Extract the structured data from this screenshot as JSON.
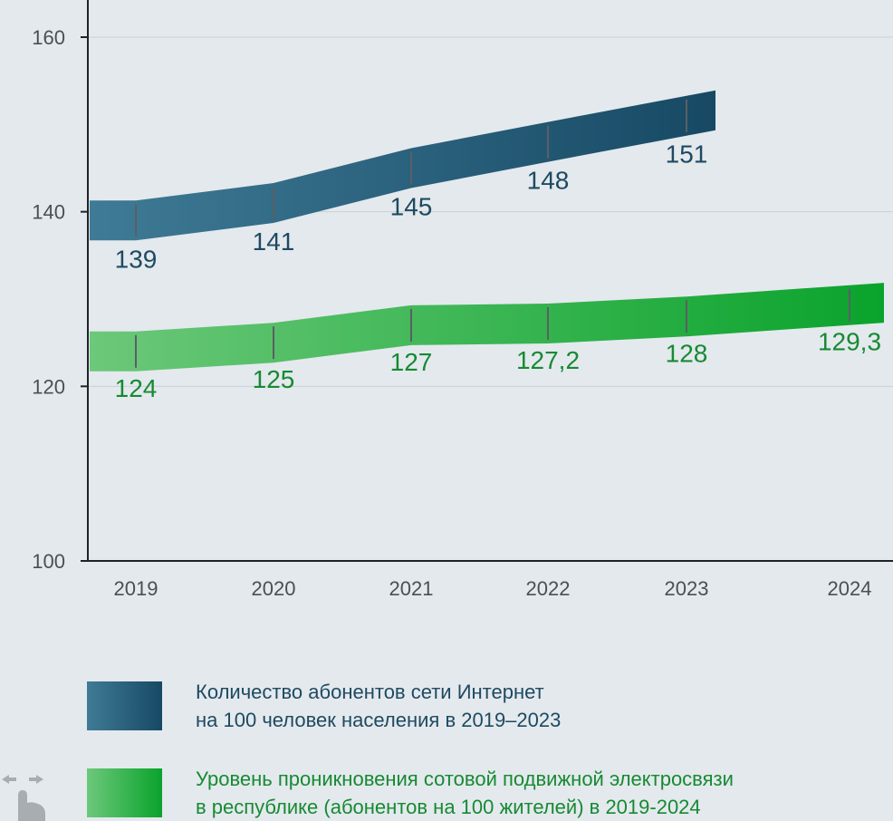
{
  "chart_data": {
    "type": "line",
    "x": [
      "2019",
      "2020",
      "2021",
      "2022",
      "2023",
      "2024"
    ],
    "ylim": [
      100,
      160
    ],
    "yticks": [
      "100",
      "120",
      "140",
      "160"
    ],
    "grid": true,
    "series": [
      {
        "name": "Количество абонентов сети Интернет на 100 человек населения в 2019–2023",
        "values": [
          139,
          141,
          145,
          148,
          151,
          null
        ],
        "labels": [
          "139",
          "141",
          "145",
          "148",
          "151",
          ""
        ],
        "color": "#1e4a62",
        "gradient": [
          "#3f7b96",
          "#174964"
        ]
      },
      {
        "name": "Уровень проникновения сотовой подвижной электросвязи в республике (абонентов на 100 жителей) в 2019-2024",
        "values": [
          124,
          125,
          127,
          127.2,
          128,
          129.3
        ],
        "labels": [
          "124",
          "125",
          "127",
          "127,2",
          "128",
          "129,3"
        ],
        "color": "#168a33",
        "gradient": [
          "#6cc87a",
          "#0aa32c"
        ]
      }
    ],
    "legend_position": "bottom"
  },
  "legend": [
    {
      "line1": "Количество абонентов сети Интернет",
      "line2": "на 100 человек населения в 2019–2023"
    },
    {
      "line1": "Уровень проникновения сотовой подвижной электросвязи",
      "line2": "в республике (абонентов на 100 жителей) в 2019-2024"
    }
  ],
  "icons": {
    "gesture": "swipe-hand-icon"
  }
}
